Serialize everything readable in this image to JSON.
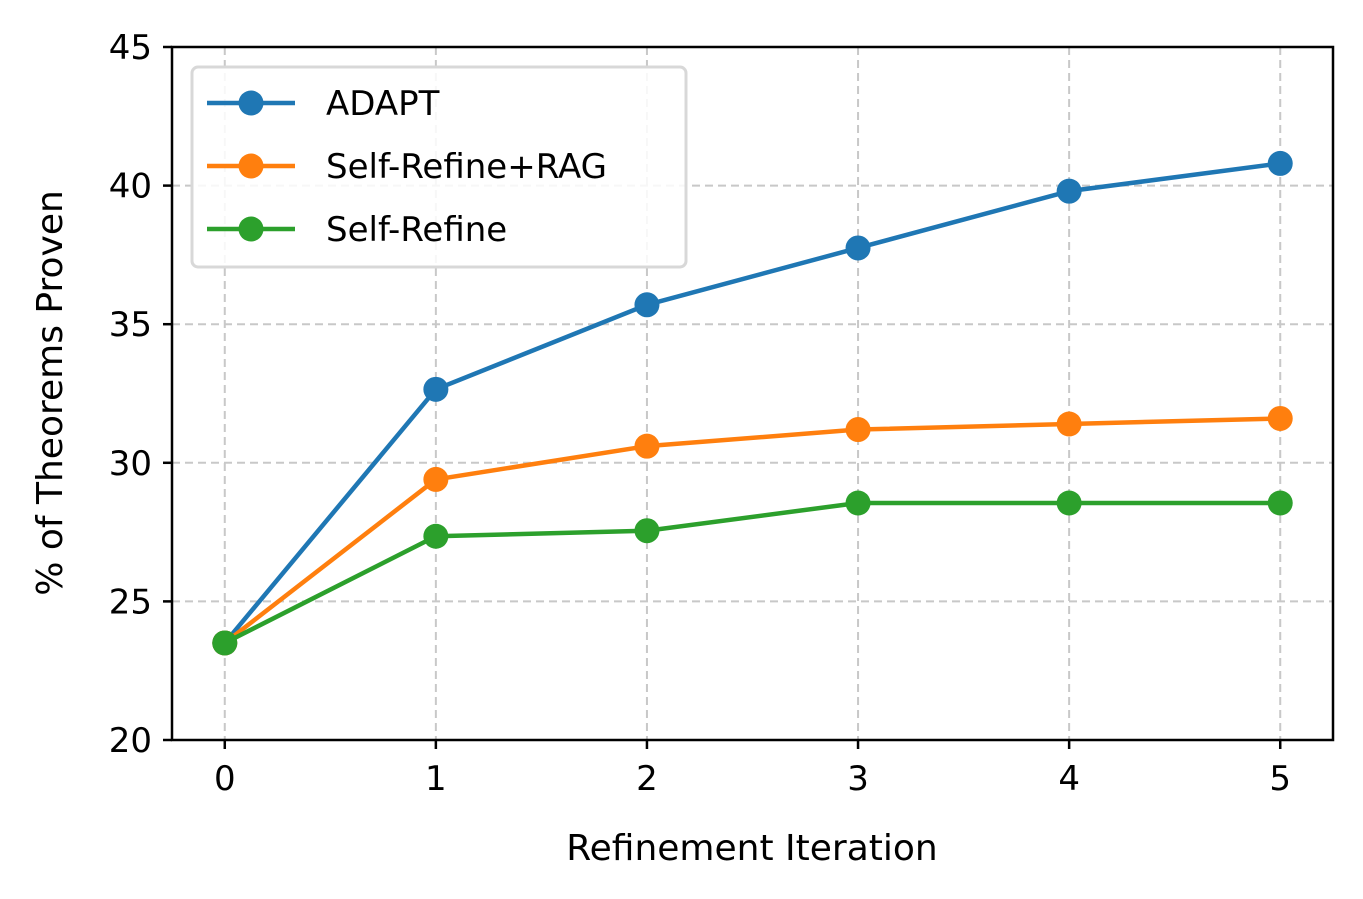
{
  "chart_data": {
    "type": "line",
    "title": "",
    "xlabel": "Refinement Iteration",
    "ylabel": "% of Theorems Proven",
    "x": [
      0,
      1,
      2,
      3,
      4,
      5
    ],
    "xlim": [
      -0.25,
      5.25
    ],
    "ylim": [
      20,
      45
    ],
    "xticks": [
      "0",
      "1",
      "2",
      "3",
      "4",
      "5"
    ],
    "yticks": [
      "20",
      "25",
      "30",
      "35",
      "40",
      "45"
    ],
    "grid": true,
    "legend_position": "top-left",
    "series": [
      {
        "name": "ADAPT",
        "color": "#1f77b4",
        "values": [
          23.5,
          32.65,
          35.7,
          37.75,
          39.8,
          40.8
        ]
      },
      {
        "name": "Self-Refine+RAG",
        "color": "#ff7f0e",
        "values": [
          23.5,
          29.4,
          30.6,
          31.2,
          31.4,
          31.6
        ]
      },
      {
        "name": "Self-Refine",
        "color": "#2ca02c",
        "values": [
          23.5,
          27.35,
          27.55,
          28.55,
          28.55,
          28.55
        ]
      }
    ]
  }
}
